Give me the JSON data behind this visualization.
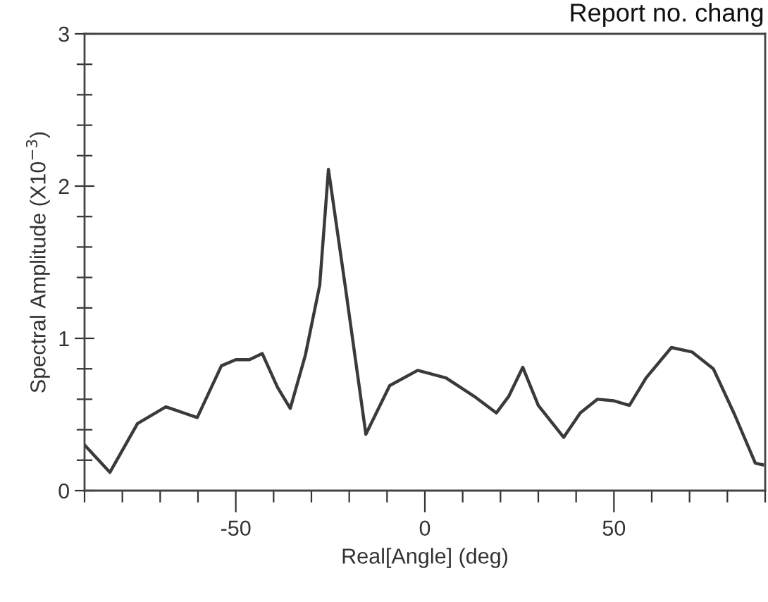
{
  "chart_data": {
    "type": "line",
    "xlabel": "Real[Angle] (deg)",
    "ylabel": "Spectral Amplitude (X10$^{−3}$)",
    "annotations": [
      "Report no. chang"
    ],
    "xlim": [
      -90,
      90
    ],
    "ylim": [
      0,
      3
    ],
    "xticks": [
      {
        "value": -90,
        "label": null
      },
      {
        "value": -80,
        "label": null
      },
      {
        "value": -70,
        "label": null
      },
      {
        "value": -60,
        "label": null
      },
      -50,
      {
        "value": -40,
        "label": null
      },
      {
        "value": -30,
        "label": null
      },
      {
        "value": -20,
        "label": null
      },
      {
        "value": -10,
        "label": null
      },
      0,
      {
        "value": 10,
        "label": null
      },
      {
        "value": 20,
        "label": null
      },
      {
        "value": 30,
        "label": null
      },
      {
        "value": 40,
        "label": null
      },
      50,
      {
        "value": 60,
        "label": null
      },
      {
        "value": 70,
        "label": null
      },
      {
        "value": 80,
        "label": null
      },
      {
        "value": 90,
        "label": null
      }
    ],
    "yticks": [
      0,
      {
        "value": 0.2,
        "label": null
      },
      {
        "value": 0.4,
        "label": null
      },
      {
        "value": 0.6,
        "label": null
      },
      {
        "value": 0.8,
        "label": null
      },
      1,
      {
        "value": 1.2,
        "label": null
      },
      {
        "value": 1.4,
        "label": null
      },
      {
        "value": 1.6,
        "label": null
      },
      {
        "value": 1.8,
        "label": null
      },
      2,
      {
        "value": 2.2,
        "label": null
      },
      {
        "value": 2.4,
        "label": null
      },
      {
        "value": 2.6,
        "label": null
      },
      {
        "value": 2.8,
        "label": null
      },
      3
    ],
    "grid": false,
    "legend": false,
    "marker": "none",
    "line_style": "solid",
    "series": [
      {
        "color": "#3a3a3a",
        "x": [
          -90,
          -83.3,
          -76,
          -68.5,
          -60.2,
          -53.8,
          -50,
          -46.4,
          -43,
          -39,
          -35.6,
          -31.6,
          -27.8,
          -25.5,
          -21.1,
          -15.6,
          -9.3,
          -1.9,
          5.6,
          13,
          18.9,
          22.2,
          25.9,
          30,
          36.7,
          41.1,
          45.6,
          50,
          54.1,
          58.5,
          65.2,
          70.7,
          76.3,
          81.9,
          87.4,
          89.3
        ],
        "values": [
          0.3,
          0.12,
          0.44,
          0.55,
          0.48,
          0.82,
          0.86,
          0.86,
          0.9,
          0.68,
          0.54,
          0.89,
          1.35,
          2.11,
          1.35,
          0.37,
          0.69,
          0.79,
          0.74,
          0.62,
          0.51,
          0.62,
          0.81,
          0.56,
          0.35,
          0.51,
          0.6,
          0.59,
          0.56,
          0.74,
          0.94,
          0.91,
          0.8,
          0.5,
          0.18,
          0.17
        ]
      }
    ]
  }
}
